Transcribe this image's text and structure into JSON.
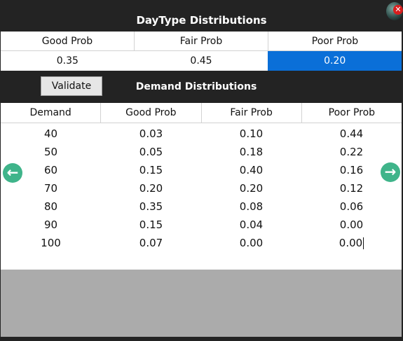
{
  "window": {
    "title": "DayType Distributions"
  },
  "daytype": {
    "headers": [
      "Good Prob",
      "Fair Prob",
      "Poor Prob"
    ],
    "values": [
      "0.35",
      "0.45",
      "0.20"
    ]
  },
  "toolbar": {
    "validate_label": "Validate"
  },
  "demand": {
    "title": "Demand Distributions",
    "headers": [
      "Demand",
      "Good Prob",
      "Fair Prob",
      "Poor Prob"
    ],
    "rows": [
      [
        "40",
        "0.03",
        "0.10",
        "0.44"
      ],
      [
        "50",
        "0.05",
        "0.18",
        "0.22"
      ],
      [
        "60",
        "0.15",
        "0.40",
        "0.16"
      ],
      [
        "70",
        "0.20",
        "0.20",
        "0.12"
      ],
      [
        "80",
        "0.35",
        "0.08",
        "0.06"
      ],
      [
        "90",
        "0.15",
        "0.04",
        "0.00"
      ],
      [
        "100",
        "0.07",
        "0.00",
        "0.00"
      ]
    ]
  },
  "icons": {
    "close": "close-icon",
    "prev": "arrow-left-icon",
    "next": "arrow-right-icon"
  },
  "colors": {
    "selected_cell": "#0a6fd8",
    "nav_arrow": "#3fb48a",
    "close_badge": "#d81e1e"
  }
}
